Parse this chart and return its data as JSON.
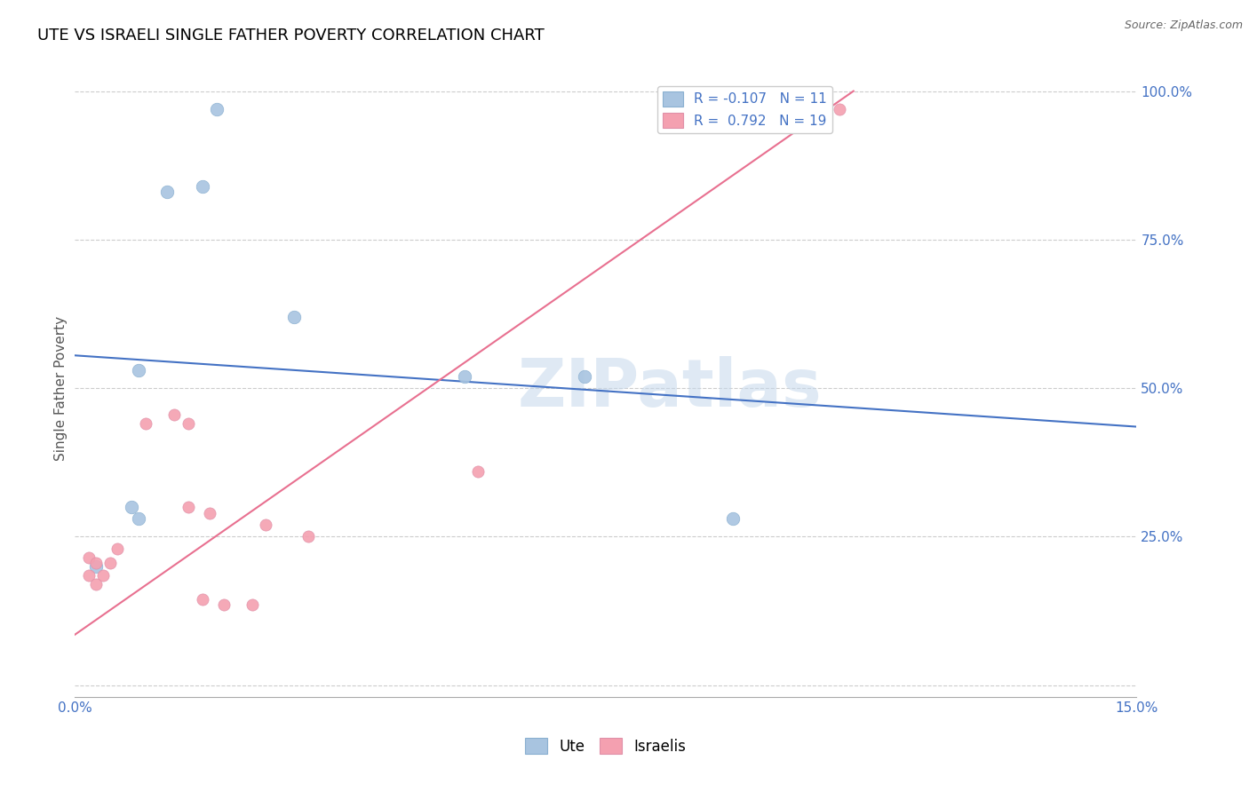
{
  "title": "UTE VS ISRAELI SINGLE FATHER POVERTY CORRELATION CHART",
  "source": "Source: ZipAtlas.com",
  "ylabel_label": "Single Father Poverty",
  "xmin": 0.0,
  "xmax": 0.15,
  "ymin": 0.0,
  "ymax": 1.0,
  "ytick_positions": [
    0.0,
    0.25,
    0.5,
    0.75,
    1.0
  ],
  "legend_r_blue": "-0.107",
  "legend_n_blue": "11",
  "legend_r_pink": "0.792",
  "legend_n_pink": "19",
  "blue_color": "#a8c4e0",
  "pink_color": "#f4a0b0",
  "blue_line_color": "#4472c4",
  "pink_line_color": "#e87090",
  "watermark": "ZIPatlas",
  "ute_points": [
    [
      0.02,
      0.97
    ],
    [
      0.013,
      0.83
    ],
    [
      0.018,
      0.84
    ],
    [
      0.031,
      0.62
    ],
    [
      0.055,
      0.52
    ],
    [
      0.072,
      0.52
    ],
    [
      0.009,
      0.53
    ],
    [
      0.008,
      0.3
    ],
    [
      0.009,
      0.28
    ],
    [
      0.093,
      0.28
    ],
    [
      0.003,
      0.2
    ]
  ],
  "israeli_points": [
    [
      0.002,
      0.215
    ],
    [
      0.003,
      0.205
    ],
    [
      0.002,
      0.185
    ],
    [
      0.004,
      0.185
    ],
    [
      0.005,
      0.205
    ],
    [
      0.006,
      0.23
    ],
    [
      0.01,
      0.44
    ],
    [
      0.014,
      0.455
    ],
    [
      0.016,
      0.44
    ],
    [
      0.016,
      0.3
    ],
    [
      0.019,
      0.29
    ],
    [
      0.018,
      0.145
    ],
    [
      0.021,
      0.135
    ],
    [
      0.025,
      0.135
    ],
    [
      0.027,
      0.27
    ],
    [
      0.033,
      0.25
    ],
    [
      0.057,
      0.36
    ],
    [
      0.108,
      0.97
    ],
    [
      0.003,
      0.17
    ]
  ],
  "blue_trend_x": [
    0.0,
    0.15
  ],
  "blue_trend_y": [
    0.555,
    0.435
  ],
  "pink_trend_x": [
    0.0,
    0.11
  ],
  "pink_trend_y": [
    0.085,
    1.0
  ]
}
